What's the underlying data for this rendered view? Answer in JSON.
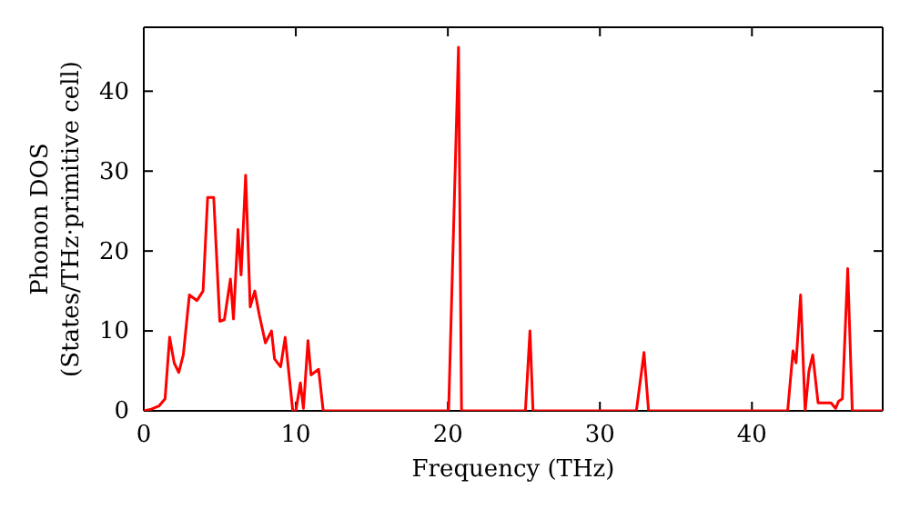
{
  "chart_data": {
    "type": "line",
    "xlabel": "Frequency (THz)",
    "ylabel": "Phonon DOS\n(States/THz·primitive cell)",
    "xlim": [
      0,
      48.6
    ],
    "ylim": [
      0,
      48
    ],
    "xticks": [
      0,
      10,
      20,
      30,
      40
    ],
    "yticks": [
      0,
      10,
      20,
      30,
      40
    ],
    "grid": false,
    "series": [
      {
        "color": "#ff0000",
        "x": [
          0,
          0.5,
          1,
          1.4,
          1.7,
          2.0,
          2.3,
          2.6,
          3.0,
          3.5,
          3.9,
          4.2,
          4.6,
          5.0,
          5.3,
          5.7,
          5.9,
          6.2,
          6.4,
          6.7,
          7.0,
          7.3,
          7.6,
          8.0,
          8.4,
          8.6,
          9.0,
          9.3,
          9.8,
          10.0,
          10.3,
          10.5,
          10.8,
          11.0,
          11.5,
          11.8,
          12.3,
          20.05,
          20.7,
          20.9,
          25.1,
          25.4,
          25.6,
          32.4,
          32.9,
          33.2,
          42.35,
          42.7,
          42.9,
          43.2,
          43.5,
          43.75,
          44.0,
          44.35,
          45.2,
          45.5,
          45.7,
          45.95,
          46.3,
          46.6,
          48.6
        ],
        "values": [
          0,
          0.2,
          0.6,
          1.5,
          9.2,
          6,
          4.8,
          7,
          14.5,
          13.8,
          15,
          26.7,
          26.7,
          11.2,
          11.4,
          16.5,
          11.5,
          22.7,
          17,
          29.5,
          13,
          15,
          12,
          8.5,
          10,
          6.5,
          5.5,
          9.2,
          0,
          0,
          3.5,
          0.3,
          8.8,
          4.5,
          5.2,
          0,
          0,
          0,
          45.5,
          0,
          0,
          10,
          0,
          0,
          7.3,
          0,
          0,
          7.5,
          6,
          14.5,
          0,
          5,
          7,
          1,
          1,
          0.3,
          1.2,
          1.5,
          17.8,
          0,
          0
        ]
      }
    ]
  }
}
